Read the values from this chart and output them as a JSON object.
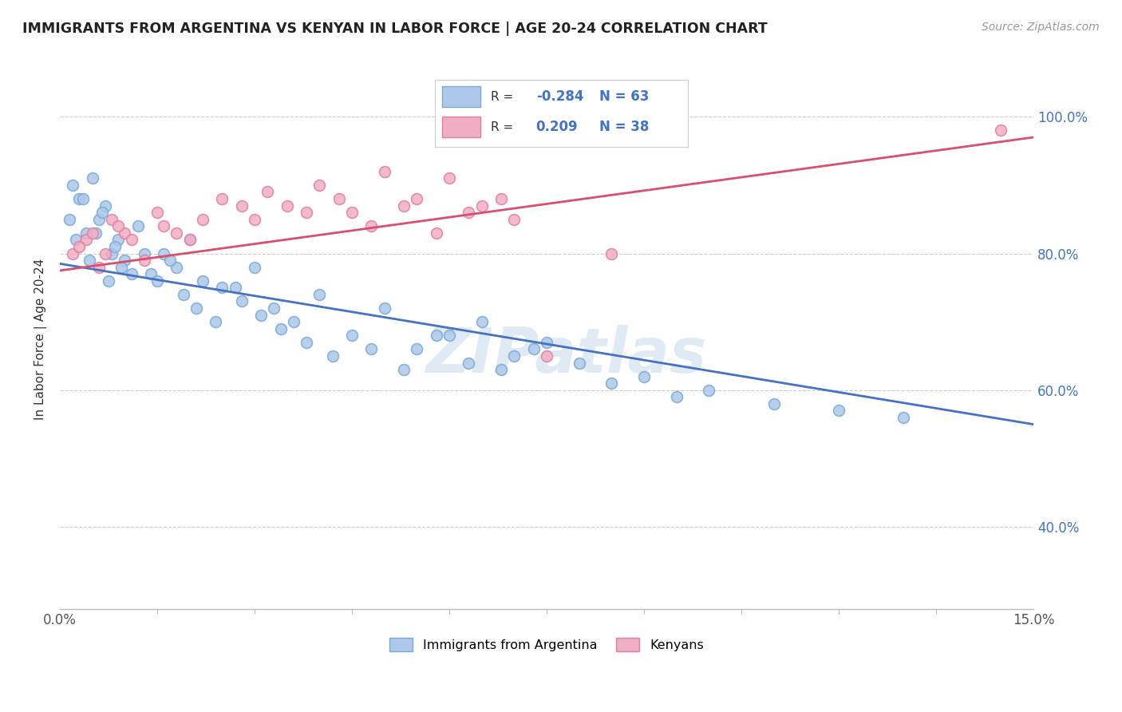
{
  "title": "IMMIGRANTS FROM ARGENTINA VS KENYAN IN LABOR FORCE | AGE 20-24 CORRELATION CHART",
  "source": "Source: ZipAtlas.com",
  "ylabel": "In Labor Force | Age 20-24",
  "xlim": [
    0.0,
    15.0
  ],
  "ylim": [
    28.0,
    107.0
  ],
  "ytick_vals": [
    40.0,
    60.0,
    80.0,
    100.0
  ],
  "ytick_labels": [
    "40.0%",
    "60.0%",
    "80.0%",
    "100.0%"
  ],
  "argentina_color": "#adc8ea",
  "kenya_color": "#f0aec4",
  "argentina_edge": "#7aaad4",
  "kenya_edge": "#e080a0",
  "trend_argentina_color": "#4472c4",
  "trend_kenya_color": "#d94f6e",
  "R_argentina": -0.284,
  "N_argentina": 63,
  "R_kenya": 0.209,
  "N_kenya": 38,
  "watermark": "ZIPatlas",
  "watermark_color": "#b0cce8",
  "legend_color": "#4472c4",
  "trend_arg_x0": 0.0,
  "trend_arg_y0": 78.5,
  "trend_arg_x1": 15.0,
  "trend_arg_y1": 55.0,
  "trend_ken_x0": 0.0,
  "trend_ken_y0": 77.5,
  "trend_ken_x1": 15.0,
  "trend_ken_y1": 97.0,
  "argentina_x": [
    0.2,
    0.3,
    0.4,
    0.5,
    0.6,
    0.7,
    0.8,
    0.9,
    1.0,
    1.2,
    1.4,
    1.6,
    1.8,
    2.0,
    2.2,
    2.5,
    2.8,
    3.0,
    3.3,
    3.6,
    4.0,
    4.5,
    5.0,
    5.5,
    6.0,
    6.5,
    7.0,
    7.5,
    8.0,
    9.0,
    10.0,
    11.0,
    13.0,
    0.15,
    0.25,
    0.35,
    0.45,
    0.55,
    0.65,
    0.75,
    0.85,
    0.95,
    1.1,
    1.3,
    1.5,
    1.7,
    1.9,
    2.1,
    2.4,
    2.7,
    3.1,
    3.4,
    3.8,
    4.2,
    4.8,
    5.3,
    5.8,
    6.3,
    6.8,
    7.3,
    8.5,
    9.5,
    12.0
  ],
  "argentina_y": [
    90.0,
    88.0,
    83.0,
    91.0,
    85.0,
    87.0,
    80.0,
    82.0,
    79.0,
    84.0,
    77.0,
    80.0,
    78.0,
    82.0,
    76.0,
    75.0,
    73.0,
    78.0,
    72.0,
    70.0,
    74.0,
    68.0,
    72.0,
    66.0,
    68.0,
    70.0,
    65.0,
    67.0,
    64.0,
    62.0,
    60.0,
    58.0,
    56.0,
    85.0,
    82.0,
    88.0,
    79.0,
    83.0,
    86.0,
    76.0,
    81.0,
    78.0,
    77.0,
    80.0,
    76.0,
    79.0,
    74.0,
    72.0,
    70.0,
    75.0,
    71.0,
    69.0,
    67.0,
    65.0,
    66.0,
    63.0,
    68.0,
    64.0,
    63.0,
    66.0,
    61.0,
    59.0,
    57.0
  ],
  "kenya_x": [
    0.2,
    0.4,
    0.6,
    0.8,
    1.0,
    1.3,
    1.6,
    2.0,
    2.5,
    3.0,
    3.5,
    4.0,
    4.5,
    5.0,
    5.5,
    6.0,
    6.5,
    7.0,
    0.3,
    0.5,
    0.7,
    0.9,
    1.1,
    1.5,
    1.8,
    2.2,
    2.8,
    3.2,
    3.8,
    4.3,
    4.8,
    5.3,
    5.8,
    6.3,
    6.8,
    7.5,
    8.5,
    14.5
  ],
  "kenya_y": [
    80.0,
    82.0,
    78.0,
    85.0,
    83.0,
    79.0,
    84.0,
    82.0,
    88.0,
    85.0,
    87.0,
    90.0,
    86.0,
    92.0,
    88.0,
    91.0,
    87.0,
    85.0,
    81.0,
    83.0,
    80.0,
    84.0,
    82.0,
    86.0,
    83.0,
    85.0,
    87.0,
    89.0,
    86.0,
    88.0,
    84.0,
    87.0,
    83.0,
    86.0,
    88.0,
    65.0,
    80.0,
    98.0
  ]
}
